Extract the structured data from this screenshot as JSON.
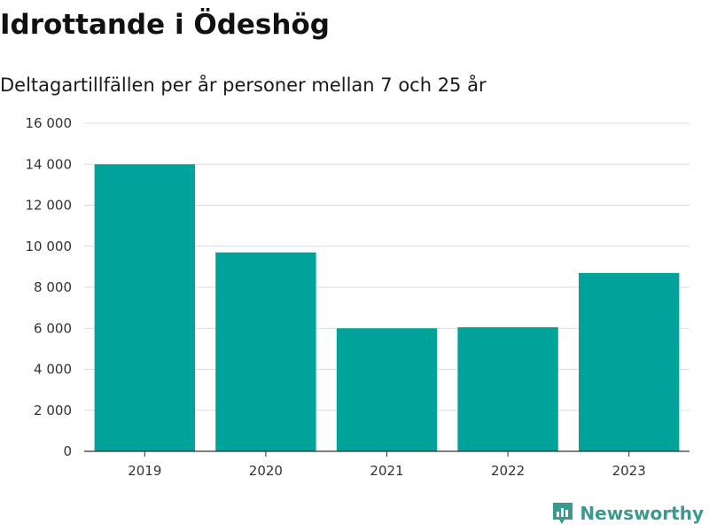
{
  "header": {
    "title": "Idrottande i Ödeshög",
    "subtitle": "Deltagartillfällen per år personer mellan 7 och 25 år"
  },
  "brand": {
    "name": "Newsworthy",
    "icon": "bar-chart-speech-bubble-icon",
    "color": "#3a9a90"
  },
  "colors": {
    "bar": "#00a39a",
    "grid": "#dddddd",
    "axis": "#333333"
  },
  "chart_data": {
    "type": "bar",
    "title": "Idrottande i Ödeshög",
    "subtitle": "Deltagartillfällen per år personer mellan 7 och 25 år",
    "categories": [
      "2019",
      "2020",
      "2021",
      "2022",
      "2023"
    ],
    "values": [
      14000,
      9700,
      6000,
      6050,
      8700
    ],
    "ylim": [
      0,
      16000
    ],
    "yticks": [
      0,
      2000,
      4000,
      6000,
      8000,
      10000,
      12000,
      14000,
      16000
    ],
    "ytick_labels": [
      "0",
      "2 000",
      "4 000",
      "6 000",
      "8 000",
      "10 000",
      "12 000",
      "14 000",
      "16 000"
    ],
    "xlabel": "",
    "ylabel": "",
    "grid": true,
    "legend": "none"
  }
}
